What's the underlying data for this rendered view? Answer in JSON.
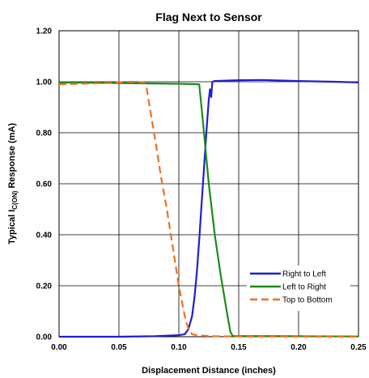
{
  "chart_data": {
    "type": "line",
    "title": "Flag Next to Sensor",
    "xlabel": "Displacement Distance (inches)",
    "ylabel_parts": [
      "Typical I",
      "C(ON)",
      " Response (mA)"
    ],
    "xlim": [
      0,
      0.25
    ],
    "ylim": [
      0,
      1.2
    ],
    "x_ticks": [
      "0.00",
      "0.05",
      "0.10",
      "0.15",
      "0.20",
      "0.25"
    ],
    "x_tick_values": [
      0,
      0.05,
      0.1,
      0.15,
      0.2,
      0.25
    ],
    "y_ticks": [
      "0.00",
      "0.20",
      "0.40",
      "0.60",
      "0.80",
      "1.00",
      "1.20"
    ],
    "y_tick_values": [
      0,
      0.2,
      0.4,
      0.6,
      0.8,
      1.0,
      1.2
    ],
    "grid": true,
    "legend_position": "bottom-right",
    "series": [
      {
        "name": "Right to Left",
        "color": "#1f1fcc",
        "dash": "solid",
        "x": [
          0,
          0.05,
          0.08,
          0.1,
          0.105,
          0.108,
          0.111,
          0.113,
          0.115,
          0.117,
          0.119,
          0.121,
          0.123,
          0.125,
          0.126,
          0.127,
          0.128,
          0.13,
          0.15,
          0.17,
          0.2,
          0.23,
          0.25
        ],
        "y": [
          0,
          0,
          0.002,
          0.006,
          0.01,
          0.03,
          0.08,
          0.15,
          0.25,
          0.38,
          0.52,
          0.66,
          0.8,
          0.93,
          0.97,
          0.94,
          1.0,
          1.003,
          1.006,
          1.007,
          1.003,
          1.0,
          0.997
        ]
      },
      {
        "name": "Left to Right",
        "color": "#1a8c1a",
        "dash": "solid",
        "x": [
          0,
          0.05,
          0.1,
          0.117,
          0.12,
          0.125,
          0.13,
          0.135,
          0.14,
          0.143,
          0.145,
          0.2,
          0.25
        ],
        "y": [
          0.997,
          0.995,
          0.992,
          0.99,
          0.85,
          0.6,
          0.4,
          0.24,
          0.1,
          0.02,
          0.003,
          0.002,
          0.001
        ]
      },
      {
        "name": "Top to Bottom",
        "color": "#f07020",
        "dash": "dashed",
        "x": [
          0,
          0.04,
          0.06,
          0.07,
          0.073,
          0.075,
          0.08,
          0.085,
          0.09,
          0.095,
          0.1,
          0.105,
          0.108,
          0.111,
          0.115,
          0.12,
          0.13,
          0.15,
          0.25
        ],
        "y": [
          0.99,
          0.995,
          1.0,
          0.998,
          0.98,
          0.92,
          0.78,
          0.63,
          0.5,
          0.35,
          0.2,
          0.08,
          0.03,
          0.01,
          0.006,
          0.004,
          0.002,
          0.001,
          0.0
        ]
      }
    ]
  }
}
